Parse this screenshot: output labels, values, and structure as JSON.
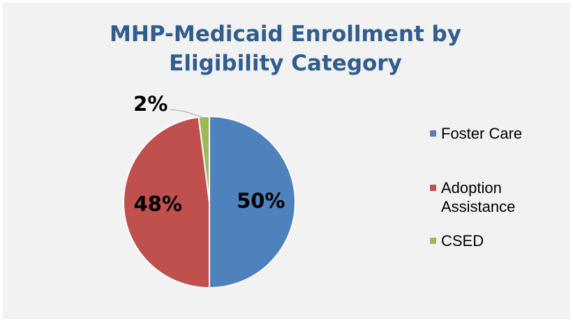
{
  "chart_data": {
    "type": "pie",
    "title": "MHP-Medicaid Enrollment by Eligibility Category",
    "categories": [
      "Foster Care",
      "Adoption Assistance",
      "CSED"
    ],
    "values": [
      50,
      48,
      2
    ],
    "value_labels": [
      "50%",
      "48%",
      "2%"
    ],
    "colors": [
      "#4f81bd",
      "#c0504d",
      "#9bbb59"
    ],
    "legend": "right"
  }
}
